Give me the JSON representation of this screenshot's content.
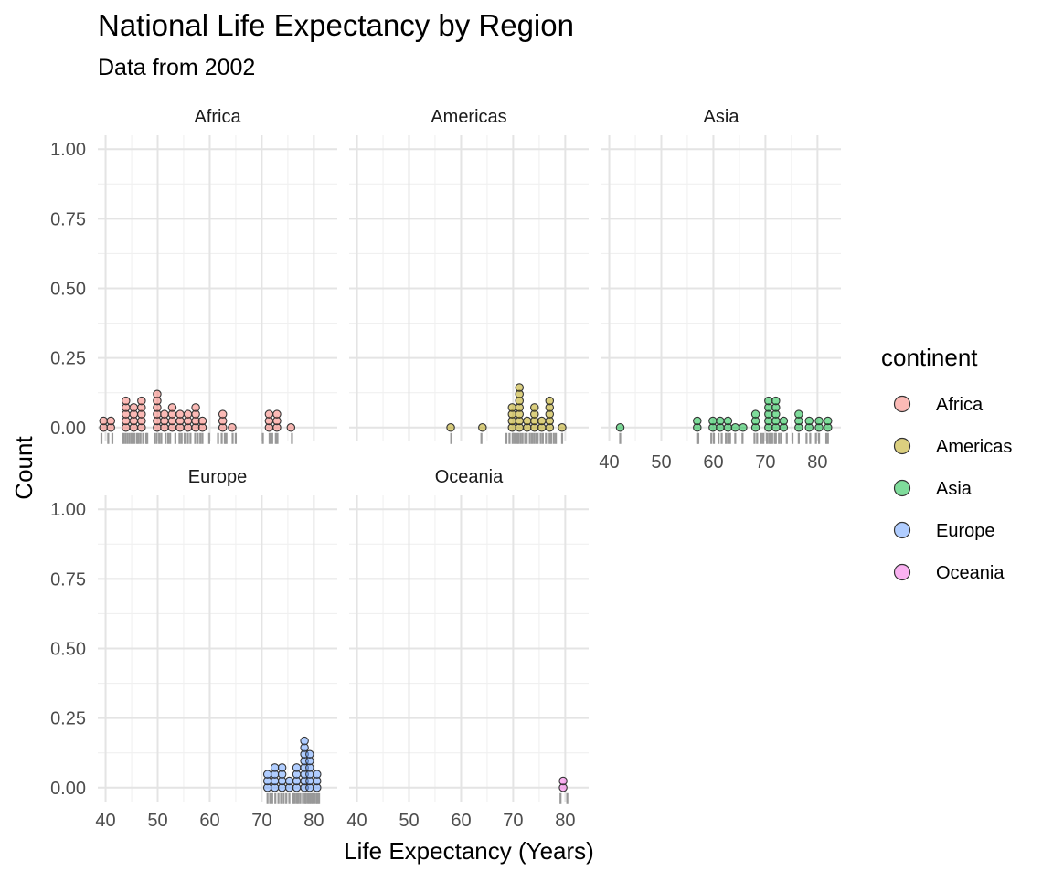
{
  "chart_data": {
    "type": "dotplot",
    "title": "National Life Expectancy by Region",
    "subtitle": "Data from 2002",
    "xlabel": "Life Expectancy (Years)",
    "ylabel": "Count",
    "x_ticks": [
      "40",
      "50",
      "60",
      "70",
      "80"
    ],
    "y_ticks": [
      "0.00",
      "0.25",
      "0.50",
      "0.75",
      "1.00"
    ],
    "xlim": [
      38.5,
      84.5
    ],
    "ylim": [
      -0.05,
      1.05
    ],
    "grid": true,
    "facets": [
      {
        "name": "Africa",
        "color": "#F8766D",
        "bins": [
          {
            "x": 39.6,
            "n": 2
          },
          {
            "x": 41.0,
            "n": 2
          },
          {
            "x": 43.9,
            "n": 5
          },
          {
            "x": 45.4,
            "n": 4
          },
          {
            "x": 46.9,
            "n": 5
          },
          {
            "x": 49.9,
            "n": 6
          },
          {
            "x": 51.3,
            "n": 3
          },
          {
            "x": 52.8,
            "n": 4
          },
          {
            "x": 54.3,
            "n": 3
          },
          {
            "x": 55.8,
            "n": 3
          },
          {
            "x": 57.3,
            "n": 4
          },
          {
            "x": 58.6,
            "n": 2
          },
          {
            "x": 62.5,
            "n": 3
          },
          {
            "x": 64.3,
            "n": 1
          },
          {
            "x": 71.4,
            "n": 3
          },
          {
            "x": 72.9,
            "n": 3
          },
          {
            "x": 75.6,
            "n": 1
          }
        ],
        "rug": [
          39.2,
          40.5,
          41.3,
          43.4,
          43.8,
          44.2,
          44.6,
          45.0,
          45.5,
          46.0,
          46.3,
          46.7,
          47.2,
          47.8,
          48.0,
          49.4,
          49.8,
          50.3,
          50.7,
          51.5,
          52.0,
          52.4,
          53.4,
          54.2,
          54.6,
          55.2,
          55.8,
          56.3,
          57.2,
          57.7,
          58.2,
          58.6,
          59.9,
          61.6,
          62.3,
          62.9,
          63.2,
          64.4,
          65.0,
          70.2,
          71.5,
          72.0,
          72.7,
          73.0,
          75.8
        ],
        "x_axis": false
      },
      {
        "name": "Americas",
        "color": "#B79F00",
        "bins": [
          {
            "x": 58.0,
            "n": 1
          },
          {
            "x": 64.1,
            "n": 1
          },
          {
            "x": 69.8,
            "n": 4
          },
          {
            "x": 71.2,
            "n": 7
          },
          {
            "x": 72.7,
            "n": 2
          },
          {
            "x": 74.1,
            "n": 4
          },
          {
            "x": 75.5,
            "n": 2
          },
          {
            "x": 77.0,
            "n": 5
          },
          {
            "x": 79.4,
            "n": 1
          }
        ],
        "rug": [
          58.1,
          63.9,
          68.7,
          69.3,
          69.9,
          70.3,
          70.7,
          71.0,
          71.4,
          71.8,
          72.3,
          72.6,
          73.2,
          73.6,
          74.0,
          74.4,
          74.7,
          75.3,
          75.7,
          76.3,
          77.0,
          77.3,
          77.8,
          78.2,
          79.4
        ],
        "x_axis": false
      },
      {
        "name": "Asia",
        "color": "#00BA38",
        "bins": [
          {
            "x": 42.1,
            "n": 1
          },
          {
            "x": 56.9,
            "n": 2
          },
          {
            "x": 59.9,
            "n": 2
          },
          {
            "x": 61.3,
            "n": 2
          },
          {
            "x": 62.8,
            "n": 2
          },
          {
            "x": 64.2,
            "n": 1
          },
          {
            "x": 65.7,
            "n": 1
          },
          {
            "x": 68.1,
            "n": 3
          },
          {
            "x": 70.6,
            "n": 5
          },
          {
            "x": 72.0,
            "n": 5
          },
          {
            "x": 73.5,
            "n": 2
          },
          {
            "x": 76.4,
            "n": 3
          },
          {
            "x": 78.4,
            "n": 2
          },
          {
            "x": 80.3,
            "n": 2
          },
          {
            "x": 82.0,
            "n": 2
          }
        ],
        "rug": [
          42.1,
          56.9,
          57.1,
          59.6,
          60.1,
          61.0,
          61.6,
          62.4,
          62.8,
          63.2,
          64.2,
          65.6,
          67.9,
          68.4,
          69.2,
          69.6,
          70.3,
          70.7,
          71.0,
          71.3,
          71.8,
          72.0,
          72.6,
          73.0,
          74.1,
          75.2,
          76.4,
          77.9,
          78.6,
          79.7,
          80.3,
          81.7,
          82.0
        ],
        "x_axis": true
      },
      {
        "name": "Europe",
        "color": "#619CFF",
        "bins": [
          {
            "x": 71.1,
            "n": 3
          },
          {
            "x": 72.5,
            "n": 4
          },
          {
            "x": 73.9,
            "n": 4
          },
          {
            "x": 75.3,
            "n": 2
          },
          {
            "x": 76.7,
            "n": 4
          },
          {
            "x": 78.2,
            "n": 8
          },
          {
            "x": 79.2,
            "n": 6
          },
          {
            "x": 80.6,
            "n": 3
          }
        ],
        "rug": [
          71.1,
          71.6,
          72.0,
          72.6,
          73.2,
          73.7,
          74.2,
          74.7,
          75.3,
          76.0,
          76.3,
          76.7,
          77.0,
          77.4,
          77.9,
          78.3,
          78.5,
          78.9,
          79.2,
          79.5,
          79.8,
          80.1,
          80.5,
          80.7,
          81.0
        ],
        "x_axis": true
      },
      {
        "name": "Oceania",
        "color": "#F564E3",
        "bins": [
          {
            "x": 79.6,
            "n": 2
          }
        ],
        "rug": [
          79.1,
          80.4
        ],
        "x_axis": true
      }
    ],
    "legend": {
      "title": "continent",
      "position": "right",
      "items": [
        {
          "label": "Africa",
          "color": "#F8766D"
        },
        {
          "label": "Americas",
          "color": "#B79F00"
        },
        {
          "label": "Asia",
          "color": "#00BA38"
        },
        {
          "label": "Europe",
          "color": "#619CFF"
        },
        {
          "label": "Oceania",
          "color": "#F564E3"
        }
      ]
    }
  }
}
